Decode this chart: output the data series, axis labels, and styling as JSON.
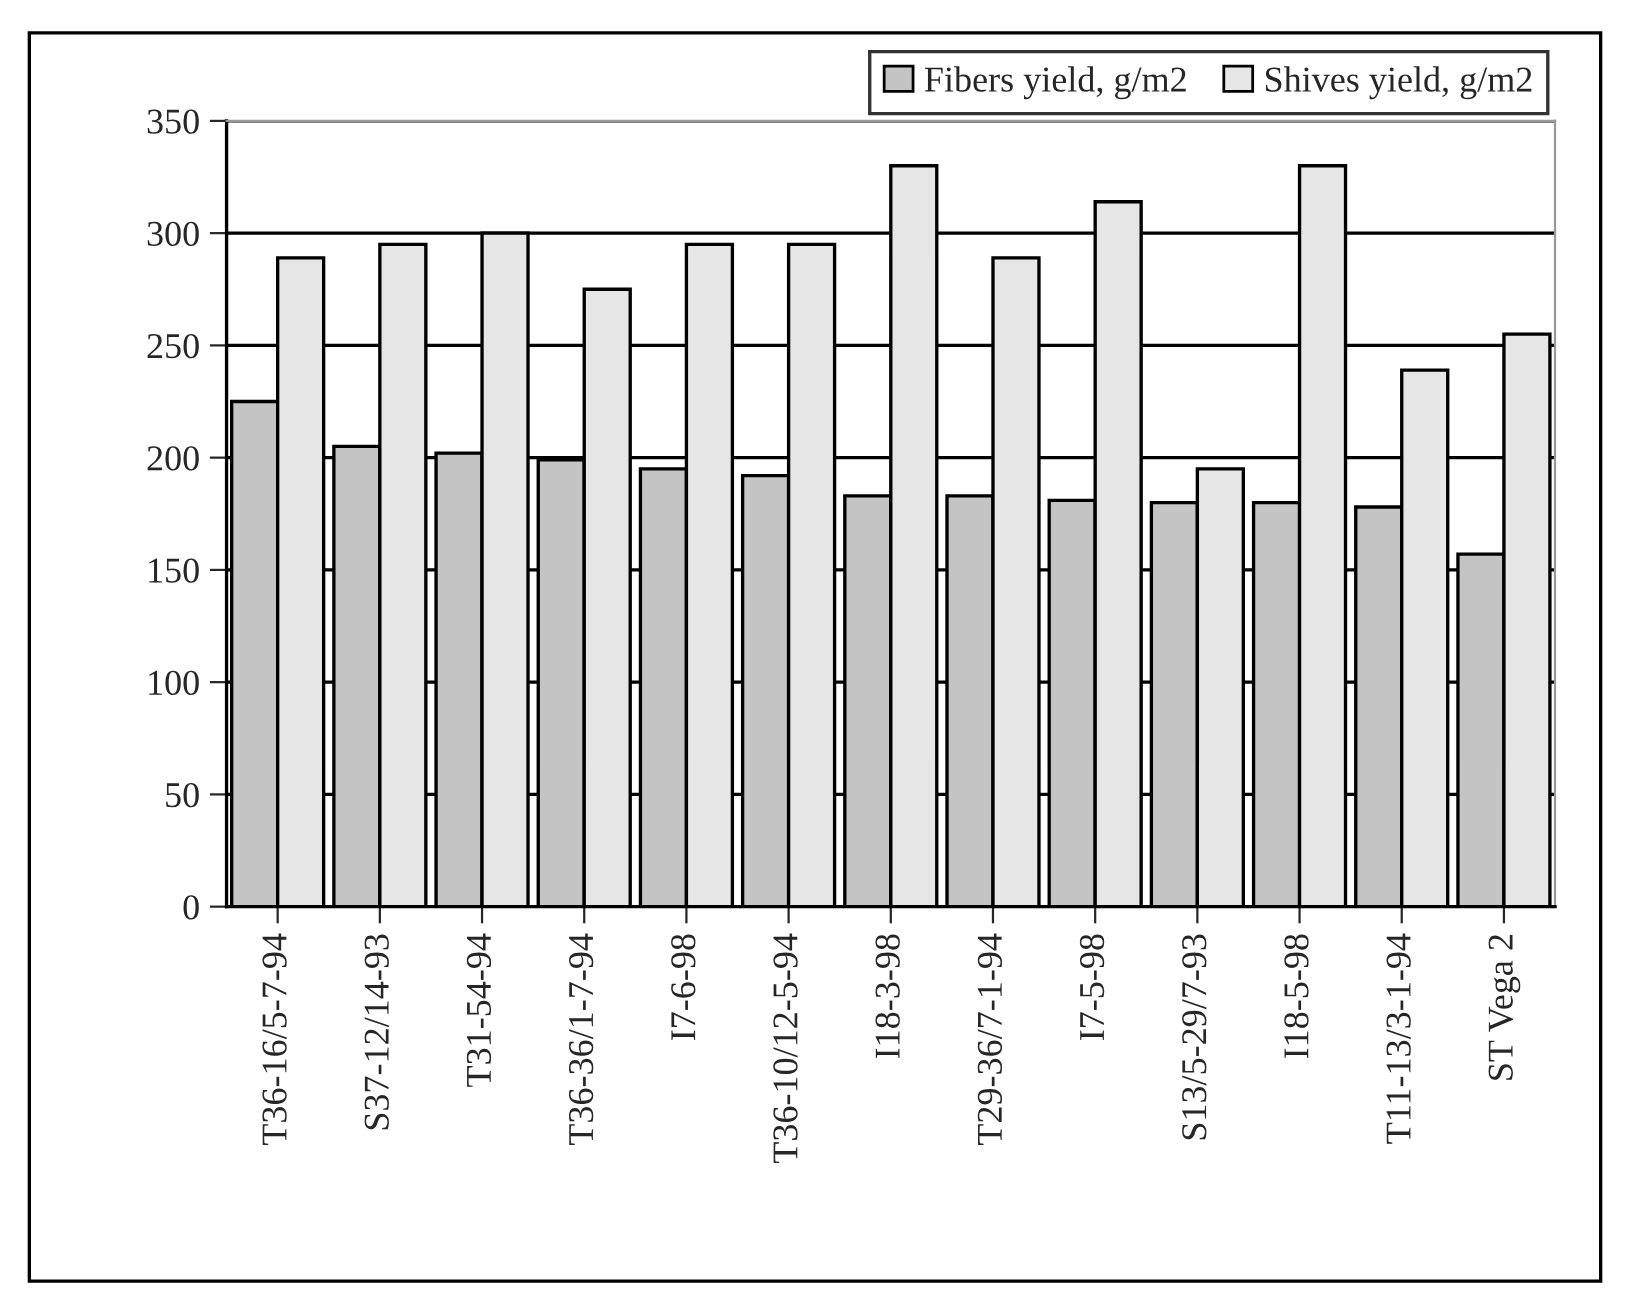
{
  "chart_data": {
    "type": "bar",
    "categories": [
      "T36-16/5-7-94",
      "S37-12/14-93",
      "T31-54-94",
      "T36-36/1-7-94",
      "I7-6-98",
      "T36-10/12-5-94",
      "I18-3-98",
      "T29-36/7-1-94",
      "I7-5-98",
      "S13/5-29/7-93",
      "I18-5-98",
      "T11-13/3-1-94",
      "ST Vega 2"
    ],
    "series": [
      {
        "name": "Fibers yield, g/m2",
        "color": "#c4c4c4",
        "values": [
          225,
          205,
          202,
          199,
          195,
          192,
          183,
          183,
          181,
          180,
          180,
          178,
          157
        ]
      },
      {
        "name": "Shives yield, g/m2",
        "color": "#e6e6e6",
        "values": [
          289,
          295,
          300,
          275,
          295,
          295,
          330,
          289,
          314,
          195,
          330,
          239,
          255
        ]
      }
    ],
    "ylim": [
      0,
      350
    ],
    "yticks": [
      0,
      50,
      100,
      150,
      200,
      250,
      300,
      350
    ],
    "grid": "y",
    "legend": "top right"
  }
}
